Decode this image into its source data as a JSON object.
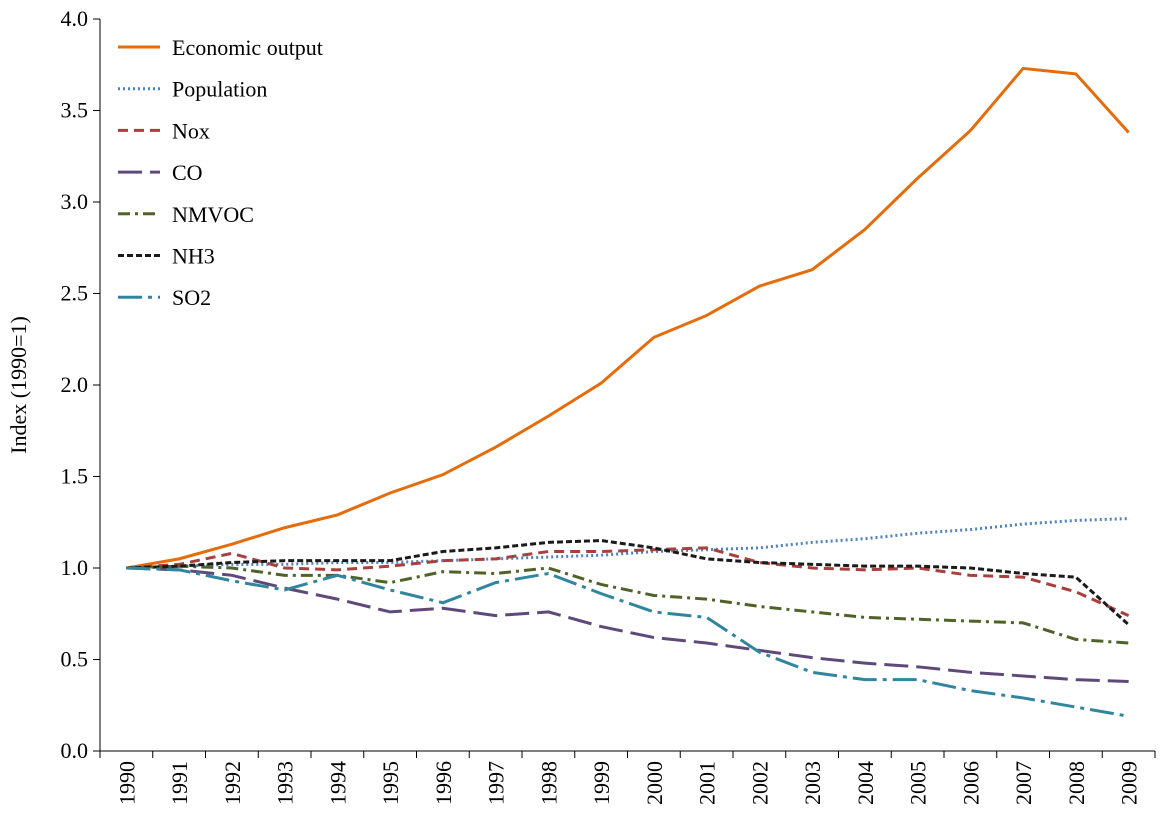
{
  "chart_data": {
    "type": "line",
    "y_label": "Index (1990=1)",
    "categories": [
      "1990",
      "1991",
      "1992",
      "1993",
      "1994",
      "1995",
      "1996",
      "1997",
      "1998",
      "1999",
      "2000",
      "2001",
      "2002",
      "2003",
      "2004",
      "2005",
      "2006",
      "2007",
      "2008",
      "2009"
    ],
    "ylim": [
      0,
      4
    ],
    "yticks": [
      {
        "value": 0,
        "label": "0.0"
      },
      {
        "value": 0.5,
        "label": "0.5"
      },
      {
        "value": 1,
        "label": "1.0"
      },
      {
        "value": 1.5,
        "label": "1.5"
      },
      {
        "value": 2,
        "label": "2.0"
      },
      {
        "value": 2.5,
        "label": "2.5"
      },
      {
        "value": 3,
        "label": "3.0"
      },
      {
        "value": 3.5,
        "label": "3.5"
      },
      {
        "value": 4,
        "label": "4.0"
      }
    ],
    "grid": false,
    "legend": "top-left",
    "series": [
      {
        "name": "Economic output",
        "color": "#E46C0A",
        "dash": "solid",
        "values": [
          1.0,
          1.05,
          1.13,
          1.22,
          1.29,
          1.41,
          1.51,
          1.66,
          1.83,
          2.01,
          2.26,
          2.38,
          2.54,
          2.63,
          2.85,
          3.13,
          3.39,
          3.73,
          3.7,
          3.38
        ]
      },
      {
        "name": "Population",
        "color": "#4F81BD",
        "dash": "dot",
        "values": [
          1.0,
          1.01,
          1.02,
          1.02,
          1.03,
          1.03,
          1.04,
          1.05,
          1.06,
          1.07,
          1.09,
          1.1,
          1.11,
          1.14,
          1.16,
          1.19,
          1.21,
          1.24,
          1.26,
          1.27
        ]
      },
      {
        "name": "Nox",
        "color": "#A8403D",
        "dash": "dash",
        "values": [
          1.0,
          1.02,
          1.08,
          1.0,
          0.99,
          1.01,
          1.04,
          1.05,
          1.09,
          1.09,
          1.1,
          1.11,
          1.03,
          1.0,
          0.99,
          1.0,
          0.96,
          0.95,
          0.87,
          0.74
        ]
      },
      {
        "name": "CO",
        "color": "#5F497A",
        "dash": "longdash",
        "values": [
          1.0,
          0.99,
          0.96,
          0.89,
          0.83,
          0.76,
          0.78,
          0.74,
          0.76,
          0.68,
          0.62,
          0.59,
          0.55,
          0.51,
          0.48,
          0.46,
          0.43,
          0.41,
          0.39,
          0.38
        ]
      },
      {
        "name": "NMVOC",
        "color": "#4F6228",
        "dash": "dashdot",
        "values": [
          1.0,
          1.01,
          1.0,
          0.96,
          0.96,
          0.92,
          0.98,
          0.97,
          1.0,
          0.91,
          0.85,
          0.83,
          0.79,
          0.76,
          0.73,
          0.72,
          0.71,
          0.7,
          0.61,
          0.59
        ]
      },
      {
        "name": "NH3",
        "color": "#1A1A1A",
        "dash": "shortdash",
        "values": [
          1.0,
          1.01,
          1.03,
          1.04,
          1.04,
          1.04,
          1.09,
          1.11,
          1.14,
          1.15,
          1.11,
          1.05,
          1.03,
          1.02,
          1.01,
          1.01,
          1.0,
          0.97,
          0.95,
          0.69
        ]
      },
      {
        "name": "SO2",
        "color": "#31859C",
        "dash": "longdashdot",
        "values": [
          1.0,
          0.99,
          0.93,
          0.88,
          0.96,
          0.88,
          0.81,
          0.92,
          0.97,
          0.86,
          0.76,
          0.73,
          0.54,
          0.43,
          0.39,
          0.39,
          0.33,
          0.29,
          0.24,
          0.19
        ]
      }
    ]
  }
}
